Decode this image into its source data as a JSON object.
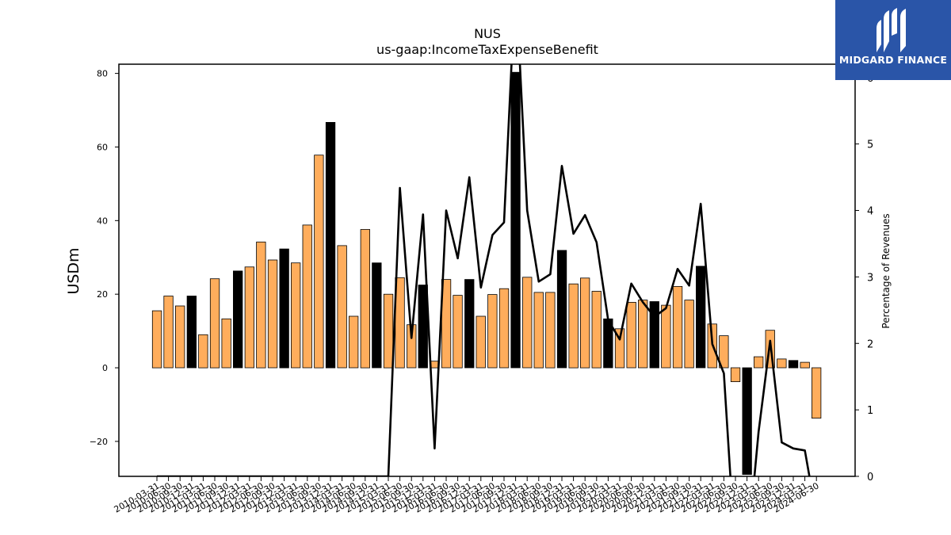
{
  "brand": {
    "name": "MIDGARD FINANCE",
    "color": "#2a55a8"
  },
  "chart_data": {
    "type": "bar",
    "title": "NUS",
    "subtitle": "us-gaap:IncomeTaxExpenseBenefit",
    "ylabel": "USDm",
    "y2label": "Percentage of Revenues",
    "ylim": [
      -29.5,
      82.5
    ],
    "y2lim": [
      0,
      6.2
    ],
    "yticks": [
      -20,
      0,
      20,
      40,
      60,
      80
    ],
    "y2ticks": [
      0,
      1,
      2,
      3,
      4,
      5,
      6
    ],
    "colors": {
      "quarter": "#ffad5c",
      "annual": "#000000",
      "line": "#000000"
    },
    "categories": [
      "2010-03-31",
      "2010-06-30",
      "2010-09-30",
      "2010-12-31",
      "2011-03-31",
      "2011-06-30",
      "2011-09-30",
      "2011-12-31",
      "2012-03-31",
      "2012-06-30",
      "2012-09-30",
      "2012-12-31",
      "2013-03-31",
      "2013-06-30",
      "2013-09-30",
      "2013-12-31",
      "2014-03-31",
      "2014-06-30",
      "2014-09-30",
      "2014-12-31",
      "2015-03-31",
      "2015-06-30",
      "2015-09-30",
      "2015-12-31",
      "2016-03-31",
      "2016-06-30",
      "2016-09-30",
      "2016-12-31",
      "2017-03-31",
      "2017-06-30",
      "2017-09-30",
      "2017-12-31",
      "2018-03-31",
      "2018-06-30",
      "2018-09-30",
      "2018-12-31",
      "2019-03-31",
      "2019-06-30",
      "2019-09-30",
      "2019-12-31",
      "2020-03-31",
      "2020-06-30",
      "2020-09-30",
      "2020-12-31",
      "2021-03-31",
      "2021-06-30",
      "2021-09-30",
      "2021-12-31",
      "2022-03-31",
      "2022-06-30",
      "2022-09-30",
      "2022-12-31",
      "2023-03-31",
      "2023-06-30",
      "2023-09-30",
      "2023-12-31",
      "2024-03-31",
      "2024-06-30"
    ],
    "series": [
      {
        "type": "bar",
        "values": [
          15.5,
          19.5,
          16.8,
          19.5,
          9.0,
          24.2,
          13.3,
          26.3,
          27.4,
          34.2,
          29.3,
          32.3,
          28.5,
          38.8,
          57.8,
          66.7,
          33.2,
          14.0,
          37.6,
          28.5,
          20.0,
          24.5,
          11.7,
          22.5,
          1.8,
          24.0,
          19.7,
          24.0,
          14.0,
          19.9,
          21.5,
          80.3,
          24.6,
          20.5,
          20.5,
          31.9,
          22.8,
          24.4,
          20.8,
          13.3,
          10.6,
          17.8,
          18.4,
          18.0,
          17.0,
          22.1,
          18.4,
          27.6,
          11.9,
          8.7,
          -3.8,
          -29.0,
          3.0,
          10.2,
          2.4,
          2.0,
          1.5,
          -13.7
        ],
        "annual": [
          false,
          false,
          false,
          true,
          false,
          false,
          false,
          true,
          false,
          false,
          false,
          true,
          false,
          false,
          false,
          true,
          false,
          false,
          false,
          true,
          false,
          false,
          false,
          true,
          false,
          false,
          false,
          true,
          false,
          false,
          false,
          true,
          false,
          false,
          false,
          true,
          false,
          false,
          false,
          true,
          false,
          false,
          false,
          true,
          false,
          false,
          false,
          true,
          false,
          false,
          false,
          true,
          false,
          false,
          false,
          true,
          false,
          false
        ]
      },
      {
        "type": "line",
        "axis": "right",
        "values": [
          0,
          0,
          0,
          0,
          0,
          0,
          0,
          0,
          0,
          0,
          0,
          0,
          0,
          0,
          0,
          0,
          0,
          0,
          0,
          0,
          0,
          4.34,
          2.08,
          3.94,
          0.42,
          4.0,
          3.28,
          4.5,
          2.84,
          3.63,
          3.82,
          7.5,
          4.0,
          2.93,
          3.04,
          4.67,
          3.65,
          3.93,
          3.52,
          2.35,
          2.06,
          2.9,
          2.62,
          2.4,
          2.53,
          3.12,
          2.87,
          4.1,
          1.99,
          1.55,
          -1.2,
          -1.2,
          0.67,
          2.04,
          0.51,
          0.42,
          0.39,
          -0.6
        ]
      }
    ]
  }
}
